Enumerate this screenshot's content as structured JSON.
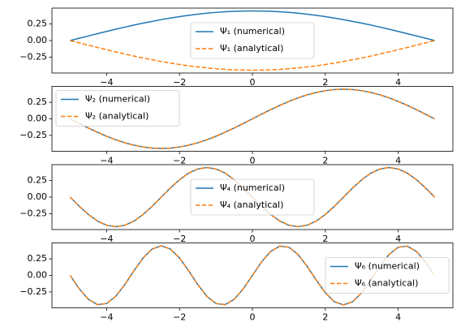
{
  "chart_data": [
    {
      "type": "line",
      "x": [
        -5,
        -4.75,
        -4.5,
        -4.25,
        -4,
        -3.75,
        -3.5,
        -3.25,
        -3,
        -2.75,
        -2.5,
        -2.25,
        -2,
        -1.75,
        -1.5,
        -1.25,
        -1,
        -0.75,
        -0.5,
        -0.25,
        0,
        0.25,
        0.5,
        0.75,
        1,
        1.25,
        1.5,
        1.75,
        2,
        2.25,
        2.5,
        2.75,
        3,
        3.25,
        3.5,
        3.75,
        4,
        4.25,
        4.5,
        4.75,
        5
      ],
      "series": [
        {
          "name": "Ψ₁ (numerical)",
          "color": "#1f77b4",
          "linestyle": "solid",
          "values": [
            0,
            0.035,
            0.07,
            0.104,
            0.138,
            0.171,
            0.203,
            0.234,
            0.263,
            0.29,
            0.316,
            0.34,
            0.362,
            0.381,
            0.398,
            0.413,
            0.425,
            0.435,
            0.442,
            0.446,
            0.447,
            0.446,
            0.442,
            0.435,
            0.425,
            0.413,
            0.398,
            0.381,
            0.362,
            0.34,
            0.316,
            0.29,
            0.263,
            0.234,
            0.203,
            0.171,
            0.138,
            0.104,
            0.07,
            0.035,
            0
          ]
        },
        {
          "name": "Ψ₁ (analytical)",
          "color": "#ff7f0e",
          "linestyle": "dashed",
          "values": [
            0,
            -0.035,
            -0.07,
            -0.104,
            -0.138,
            -0.171,
            -0.203,
            -0.234,
            -0.263,
            -0.29,
            -0.316,
            -0.34,
            -0.362,
            -0.381,
            -0.398,
            -0.413,
            -0.425,
            -0.435,
            -0.442,
            -0.446,
            -0.447,
            -0.446,
            -0.442,
            -0.435,
            -0.425,
            -0.413,
            -0.398,
            -0.381,
            -0.362,
            -0.34,
            -0.316,
            -0.29,
            -0.263,
            -0.234,
            -0.203,
            -0.171,
            -0.138,
            -0.104,
            -0.07,
            -0.035,
            0
          ]
        }
      ],
      "xlim": [
        -5.5,
        5.5
      ],
      "xticks": [
        {
          "value": -4,
          "label": "−4"
        },
        {
          "value": -2,
          "label": "−2"
        },
        0,
        2,
        4
      ],
      "ylim": [
        -0.49,
        0.49
      ],
      "yticks": [
        {
          "value": -0.25,
          "label": "−0.25"
        },
        {
          "value": 0,
          "label": "0.00"
        },
        0.25
      ],
      "legend": "center"
    },
    {
      "type": "line",
      "x": [
        -5,
        -4.75,
        -4.5,
        -4.25,
        -4,
        -3.75,
        -3.5,
        -3.25,
        -3,
        -2.75,
        -2.5,
        -2.25,
        -2,
        -1.75,
        -1.5,
        -1.25,
        -1,
        -0.75,
        -0.5,
        -0.25,
        0,
        0.25,
        0.5,
        0.75,
        1,
        1.25,
        1.5,
        1.75,
        2,
        2.25,
        2.5,
        2.75,
        3,
        3.25,
        3.5,
        3.75,
        4,
        4.25,
        4.5,
        4.75,
        5
      ],
      "series": [
        {
          "name": "Ψ₂ (numerical)",
          "color": "#1f77b4",
          "linestyle": "solid",
          "values": [
            0,
            -0.07,
            -0.138,
            -0.203,
            -0.263,
            -0.316,
            -0.362,
            -0.398,
            -0.425,
            -0.442,
            -0.447,
            -0.442,
            -0.425,
            -0.398,
            -0.362,
            -0.316,
            -0.263,
            -0.203,
            -0.138,
            -0.07,
            0,
            0.07,
            0.138,
            0.203,
            0.263,
            0.316,
            0.362,
            0.398,
            0.425,
            0.442,
            0.447,
            0.442,
            0.425,
            0.398,
            0.362,
            0.316,
            0.263,
            0.203,
            0.138,
            0.07,
            0
          ]
        },
        {
          "name": "Ψ₂ (analytical)",
          "color": "#ff7f0e",
          "linestyle": "dashed",
          "values": [
            0,
            -0.07,
            -0.138,
            -0.203,
            -0.263,
            -0.316,
            -0.362,
            -0.398,
            -0.425,
            -0.442,
            -0.447,
            -0.442,
            -0.425,
            -0.398,
            -0.362,
            -0.316,
            -0.263,
            -0.203,
            -0.138,
            -0.07,
            0,
            0.07,
            0.138,
            0.203,
            0.263,
            0.316,
            0.362,
            0.398,
            0.425,
            0.442,
            0.447,
            0.442,
            0.425,
            0.398,
            0.362,
            0.316,
            0.263,
            0.203,
            0.138,
            0.07,
            0
          ]
        }
      ],
      "xlim": [
        -5.5,
        5.5
      ],
      "xticks": [
        {
          "value": -4,
          "label": "−4"
        },
        {
          "value": -2,
          "label": "−2"
        },
        0,
        2,
        4
      ],
      "ylim": [
        -0.49,
        0.49
      ],
      "yticks": [
        {
          "value": -0.25,
          "label": "−0.25"
        },
        {
          "value": 0,
          "label": "0.00"
        },
        0.25
      ],
      "legend": "upper left"
    },
    {
      "type": "line",
      "x": [
        -5,
        -4.75,
        -4.5,
        -4.25,
        -4,
        -3.75,
        -3.5,
        -3.25,
        -3,
        -2.75,
        -2.5,
        -2.25,
        -2,
        -1.75,
        -1.5,
        -1.25,
        -1,
        -0.75,
        -0.5,
        -0.25,
        0,
        0.25,
        0.5,
        0.75,
        1,
        1.25,
        1.5,
        1.75,
        2,
        2.25,
        2.5,
        2.75,
        3,
        3.25,
        3.5,
        3.75,
        4,
        4.25,
        4.5,
        4.75,
        5
      ],
      "series": [
        {
          "name": "Ψ₄ (numerical)",
          "color": "#1f77b4",
          "linestyle": "solid",
          "values": [
            0,
            -0.138,
            -0.263,
            -0.362,
            -0.425,
            -0.447,
            -0.425,
            -0.362,
            -0.263,
            -0.138,
            0,
            0.138,
            0.263,
            0.362,
            0.425,
            0.447,
            0.425,
            0.362,
            0.263,
            0.138,
            0,
            -0.138,
            -0.263,
            -0.362,
            -0.425,
            -0.447,
            -0.425,
            -0.362,
            -0.263,
            -0.138,
            0,
            0.138,
            0.263,
            0.362,
            0.425,
            0.447,
            0.425,
            0.362,
            0.263,
            0.138,
            0
          ]
        },
        {
          "name": "Ψ₄ (analytical)",
          "color": "#ff7f0e",
          "linestyle": "dashed",
          "values": [
            0,
            -0.138,
            -0.263,
            -0.362,
            -0.425,
            -0.447,
            -0.425,
            -0.362,
            -0.263,
            -0.138,
            0,
            0.138,
            0.263,
            0.362,
            0.425,
            0.447,
            0.425,
            0.362,
            0.263,
            0.138,
            0,
            -0.138,
            -0.263,
            -0.362,
            -0.425,
            -0.447,
            -0.425,
            -0.362,
            -0.263,
            -0.138,
            0,
            0.138,
            0.263,
            0.362,
            0.425,
            0.447,
            0.425,
            0.362,
            0.263,
            0.138,
            0
          ]
        }
      ],
      "xlim": [
        -5.5,
        5.5
      ],
      "xticks": [
        {
          "value": -4,
          "label": "−4"
        },
        {
          "value": -2,
          "label": "−2"
        },
        0,
        2,
        4
      ],
      "ylim": [
        -0.49,
        0.49
      ],
      "yticks": [
        {
          "value": -0.25,
          "label": "−0.25"
        },
        {
          "value": 0,
          "label": "0.00"
        },
        0.25
      ],
      "legend": "center"
    },
    {
      "type": "line",
      "x": [
        -5,
        -4.75,
        -4.5,
        -4.25,
        -4,
        -3.75,
        -3.5,
        -3.25,
        -3,
        -2.75,
        -2.5,
        -2.25,
        -2,
        -1.75,
        -1.5,
        -1.25,
        -1,
        -0.75,
        -0.5,
        -0.25,
        0,
        0.25,
        0.5,
        0.75,
        1,
        1.25,
        1.5,
        1.75,
        2,
        2.25,
        2.5,
        2.75,
        3,
        3.25,
        3.5,
        3.75,
        4,
        4.25,
        4.5,
        4.75,
        5
      ],
      "series": [
        {
          "name": "Ψ₆ (numerical)",
          "color": "#1f77b4",
          "linestyle": "solid",
          "values": [
            0,
            -0.203,
            -0.362,
            -0.442,
            -0.425,
            -0.316,
            -0.138,
            0.07,
            0.263,
            0.398,
            0.447,
            0.398,
            0.263,
            0.07,
            -0.138,
            -0.316,
            -0.425,
            -0.442,
            -0.362,
            -0.203,
            0,
            0.203,
            0.362,
            0.442,
            0.425,
            0.316,
            0.138,
            -0.07,
            -0.263,
            -0.398,
            -0.447,
            -0.398,
            -0.263,
            -0.07,
            0.138,
            0.316,
            0.425,
            0.442,
            0.362,
            0.203,
            0
          ]
        },
        {
          "name": "Ψ₆ (analytical)",
          "color": "#ff7f0e",
          "linestyle": "dashed",
          "values": [
            0,
            -0.203,
            -0.362,
            -0.442,
            -0.425,
            -0.316,
            -0.138,
            0.07,
            0.263,
            0.398,
            0.447,
            0.398,
            0.263,
            0.07,
            -0.138,
            -0.316,
            -0.425,
            -0.442,
            -0.362,
            -0.203,
            0,
            0.203,
            0.362,
            0.442,
            0.425,
            0.316,
            0.138,
            -0.07,
            -0.263,
            -0.398,
            -0.447,
            -0.398,
            -0.263,
            -0.07,
            0.138,
            0.316,
            0.425,
            0.442,
            0.362,
            0.203,
            0
          ]
        }
      ],
      "xlim": [
        -5.5,
        5.5
      ],
      "xticks": [
        {
          "value": -4,
          "label": "−4"
        },
        {
          "value": -2,
          "label": "−2"
        },
        0,
        2,
        4
      ],
      "ylim": [
        -0.49,
        0.49
      ],
      "yticks": [
        {
          "value": -0.25,
          "label": "−0.25"
        },
        {
          "value": 0,
          "label": "0.00"
        },
        0.25
      ],
      "legend": "center right"
    }
  ]
}
